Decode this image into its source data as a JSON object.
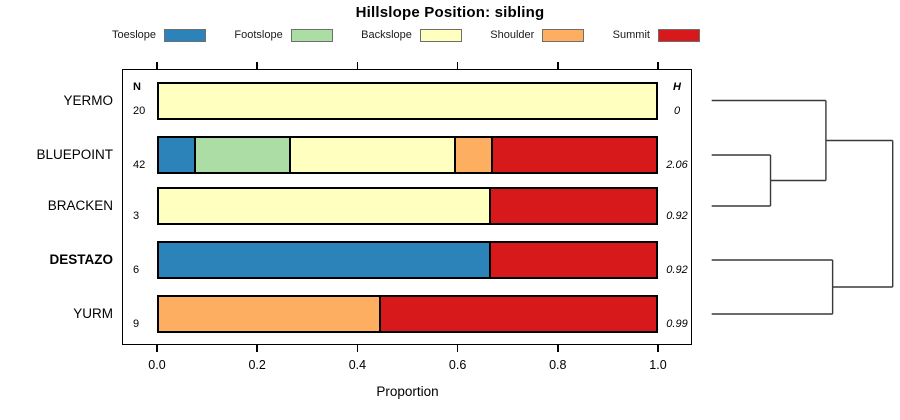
{
  "title": "Hillslope Position: sibling",
  "columns": {
    "n_header": "N",
    "h_header": "H"
  },
  "legend": [
    {
      "label": "Toeslope",
      "color": "#2B83BA"
    },
    {
      "label": "Footslope",
      "color": "#ABDDA4"
    },
    {
      "label": "Backslope",
      "color": "#FFFFBF"
    },
    {
      "label": "Shoulder",
      "color": "#FDAE61"
    },
    {
      "label": "Summit",
      "color": "#D7191C"
    }
  ],
  "chart_data": {
    "type": "stacked-bar-horizontal",
    "title": "Hillslope Position: sibling",
    "categories": [
      "Toeslope",
      "Footslope",
      "Backslope",
      "Shoulder",
      "Summit"
    ],
    "colors": [
      "#2B83BA",
      "#ABDDA4",
      "#FFFFBF",
      "#FDAE61",
      "#D7191C"
    ],
    "rows": [
      {
        "label": "YERMO",
        "bold": false,
        "n": 20,
        "h": "0",
        "proportions": [
          0,
          0,
          1.0,
          0,
          0
        ]
      },
      {
        "label": "BLUEPOINT",
        "bold": false,
        "n": 42,
        "h": "2.06",
        "proportions": [
          0.0714,
          0.1905,
          0.3333,
          0.0714,
          0.3333
        ]
      },
      {
        "label": "BRACKEN",
        "bold": false,
        "n": 3,
        "h": "0.92",
        "proportions": [
          0,
          0,
          0.6667,
          0,
          0.3333
        ]
      },
      {
        "label": "DESTAZO",
        "bold": true,
        "n": 6,
        "h": "0.92",
        "proportions": [
          0.6667,
          0,
          0,
          0,
          0.3333
        ]
      },
      {
        "label": "YURM",
        "bold": false,
        "n": 9,
        "h": "0.99",
        "proportions": [
          0,
          0,
          0,
          0.4444,
          0.5556
        ]
      }
    ],
    "x_axis": {
      "label": "Proportion",
      "range": [
        0,
        1
      ],
      "ticks": [
        0.0,
        0.2,
        0.4,
        0.6,
        0.8,
        1.0
      ],
      "tick_labels": [
        "0.0",
        "0.2",
        "0.4",
        "0.6",
        "0.8",
        "1.0"
      ]
    },
    "dendrogram": {
      "structure": "((YERMO,(BLUEPOINT,BRACKEN)),(DESTAZO,YURM))",
      "merges": [
        {
          "a": {
            "leaf": 1
          },
          "b": {
            "leaf": 2
          },
          "height": 0.325,
          "members": "BLUEPOINT+BRACKEN"
        },
        {
          "a": {
            "leaf": 0
          },
          "b": {
            "merge": 0
          },
          "height": 0.631,
          "members": "YERMO+(BLUEPOINT,BRACKEN)"
        },
        {
          "a": {
            "leaf": 3
          },
          "b": {
            "leaf": 4
          },
          "height": 0.668,
          "members": "DESTAZO+YURM"
        },
        {
          "a": {
            "merge": 1
          },
          "b": {
            "merge": 2
          },
          "height": 1.0,
          "members": "root"
        }
      ]
    }
  }
}
